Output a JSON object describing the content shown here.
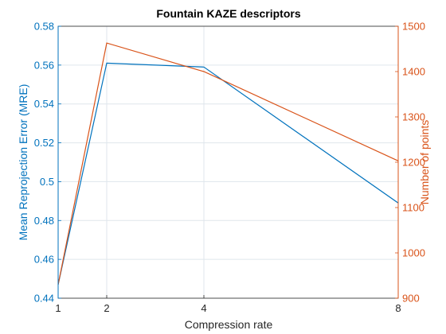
{
  "chart_data": {
    "type": "line",
    "title": "Fountain KAZE descriptors",
    "xlabel": "Compression rate",
    "ylabel_left": "Mean Reprojection Error (MRE)",
    "ylabel_right": "Number of points",
    "x": [
      1,
      2,
      4,
      8
    ],
    "x_ticks": [
      "1",
      "2",
      "4",
      "8"
    ],
    "xlim": [
      1,
      8
    ],
    "ylim_left": [
      0.44,
      0.58
    ],
    "ylim_right": [
      900,
      1500
    ],
    "y_ticks_left": [
      "0.44",
      "0.46",
      "0.48",
      "0.5",
      "0.52",
      "0.54",
      "0.56",
      "0.58"
    ],
    "y_ticks_right": [
      "900",
      "1000",
      "1100",
      "1200",
      "1300",
      "1400",
      "1500"
    ],
    "grid": true,
    "series": [
      {
        "axis": "left",
        "values": [
          0.447,
          0.561,
          0.559,
          0.489
        ],
        "color": "#0072BD"
      },
      {
        "axis": "right",
        "values": [
          930,
          1463,
          1400,
          1203
        ],
        "color": "#D95319"
      }
    ]
  }
}
